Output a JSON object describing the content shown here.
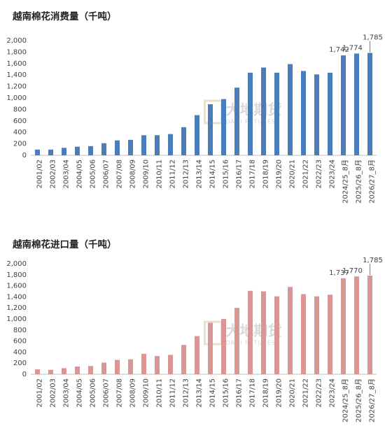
{
  "chart_data": [
    {
      "type": "bar",
      "title": "越南棉花消费量（千吨）",
      "categories": [
        "2001/02",
        "2002/03",
        "2003/04",
        "2004/05",
        "2005/06",
        "2006/07",
        "2007/08",
        "2008/09",
        "2009/10",
        "2010/11",
        "2011/12",
        "2012/13",
        "2013/14",
        "2014/15",
        "2015/16",
        "2016/17",
        "2017/18",
        "2018/19",
        "2019/20",
        "2020/21",
        "2021/22",
        "2022/23",
        "2023/24",
        "2024/25_8月",
        "2025/26_8月",
        "2026/27_8月"
      ],
      "values": [
        100,
        100,
        130,
        150,
        160,
        210,
        260,
        270,
        350,
        350,
        370,
        490,
        700,
        890,
        980,
        1180,
        1440,
        1530,
        1440,
        1590,
        1470,
        1410,
        1440,
        1742,
        1774,
        1785
      ],
      "value_labels": [
        null,
        null,
        null,
        null,
        null,
        null,
        null,
        null,
        null,
        null,
        null,
        null,
        null,
        null,
        null,
        null,
        null,
        null,
        null,
        null,
        null,
        null,
        null,
        "1,742",
        "1,774",
        "1,785"
      ],
      "color": "#4a7ebb",
      "ylim": [
        0,
        2000
      ],
      "yticks": [
        0,
        200,
        400,
        600,
        800,
        {
          "value": 1000,
          "label": "1,000"
        },
        {
          "value": 1200,
          "label": "1,200"
        },
        {
          "value": 1400,
          "label": "1,400"
        },
        {
          "value": 1600,
          "label": "1,600"
        },
        {
          "value": 1800,
          "label": "1,800"
        },
        {
          "value": 2000,
          "label": "2,000"
        }
      ],
      "watermark": "大地期货",
      "watermark_sub": "DADI FUTURES"
    },
    {
      "type": "bar",
      "title": "越南棉花进口量（千吨）",
      "categories": [
        "2001/02",
        "2002/03",
        "2003/04",
        "2004/05",
        "2005/06",
        "2006/07",
        "2007/08",
        "2008/09",
        "2009/10",
        "2010/11",
        "2011/12",
        "2012/13",
        "2013/14",
        "2014/15",
        "2015/16",
        "2016/17",
        "2017/18",
        "2018/19",
        "2019/20",
        "2020/21",
        "2021/22",
        "2022/23",
        "2023/24",
        "2024/25_8月",
        "2025/26_8月",
        "2026/27_8月"
      ],
      "values": [
        90,
        80,
        110,
        140,
        150,
        210,
        260,
        270,
        370,
        330,
        350,
        530,
        690,
        930,
        1000,
        1200,
        1510,
        1500,
        1410,
        1580,
        1450,
        1410,
        1440,
        1737,
        1770,
        1785
      ],
      "value_labels": [
        null,
        null,
        null,
        null,
        null,
        null,
        null,
        null,
        null,
        null,
        null,
        null,
        null,
        null,
        null,
        null,
        null,
        null,
        null,
        null,
        null,
        null,
        null,
        "1,737",
        "1,770",
        "1,785"
      ],
      "color": "#d99694",
      "ylim": [
        0,
        2000
      ],
      "yticks": [
        0,
        200,
        400,
        600,
        800,
        {
          "value": 1000,
          "label": "1,000"
        },
        {
          "value": 1200,
          "label": "1,200"
        },
        {
          "value": 1400,
          "label": "1,400"
        },
        {
          "value": 1600,
          "label": "1,600"
        },
        {
          "value": 1800,
          "label": "1,800"
        },
        {
          "value": 2000,
          "label": "2,000"
        }
      ],
      "watermark": "大地期货",
      "watermark_sub": "DADI FUTURES"
    }
  ]
}
